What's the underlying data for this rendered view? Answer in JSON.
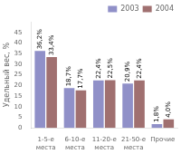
{
  "chart_data": {
    "type": "bar",
    "categories": [
      "1-5-е\nместа",
      "6-10-е\nместа",
      "11-20-е\nместа",
      "21-50-е\nместа",
      "Прочие"
    ],
    "series": [
      {
        "name": "2003",
        "color": "#9090c8",
        "values": [
          36.2,
          18.7,
          22.4,
          20.9,
          1.8
        ],
        "value_labels": [
          "36,2%",
          "18,7%",
          "22,4%",
          "20,9%",
          "1,8%"
        ]
      },
      {
        "name": "2004",
        "color": "#a07070",
        "values": [
          33.4,
          17.7,
          22.5,
          22.4,
          4.0
        ],
        "value_labels": [
          "33,4%",
          "17,7%",
          "22,5%",
          "22,4%",
          "4,0%"
        ]
      }
    ],
    "ylabel": "Удельный вес, %",
    "ylim": [
      0,
      50
    ],
    "yticks": [
      0,
      5,
      10,
      15,
      20,
      25,
      30,
      35,
      40,
      45
    ],
    "grid": false,
    "legend": "upper right",
    "data_labels": true
  }
}
